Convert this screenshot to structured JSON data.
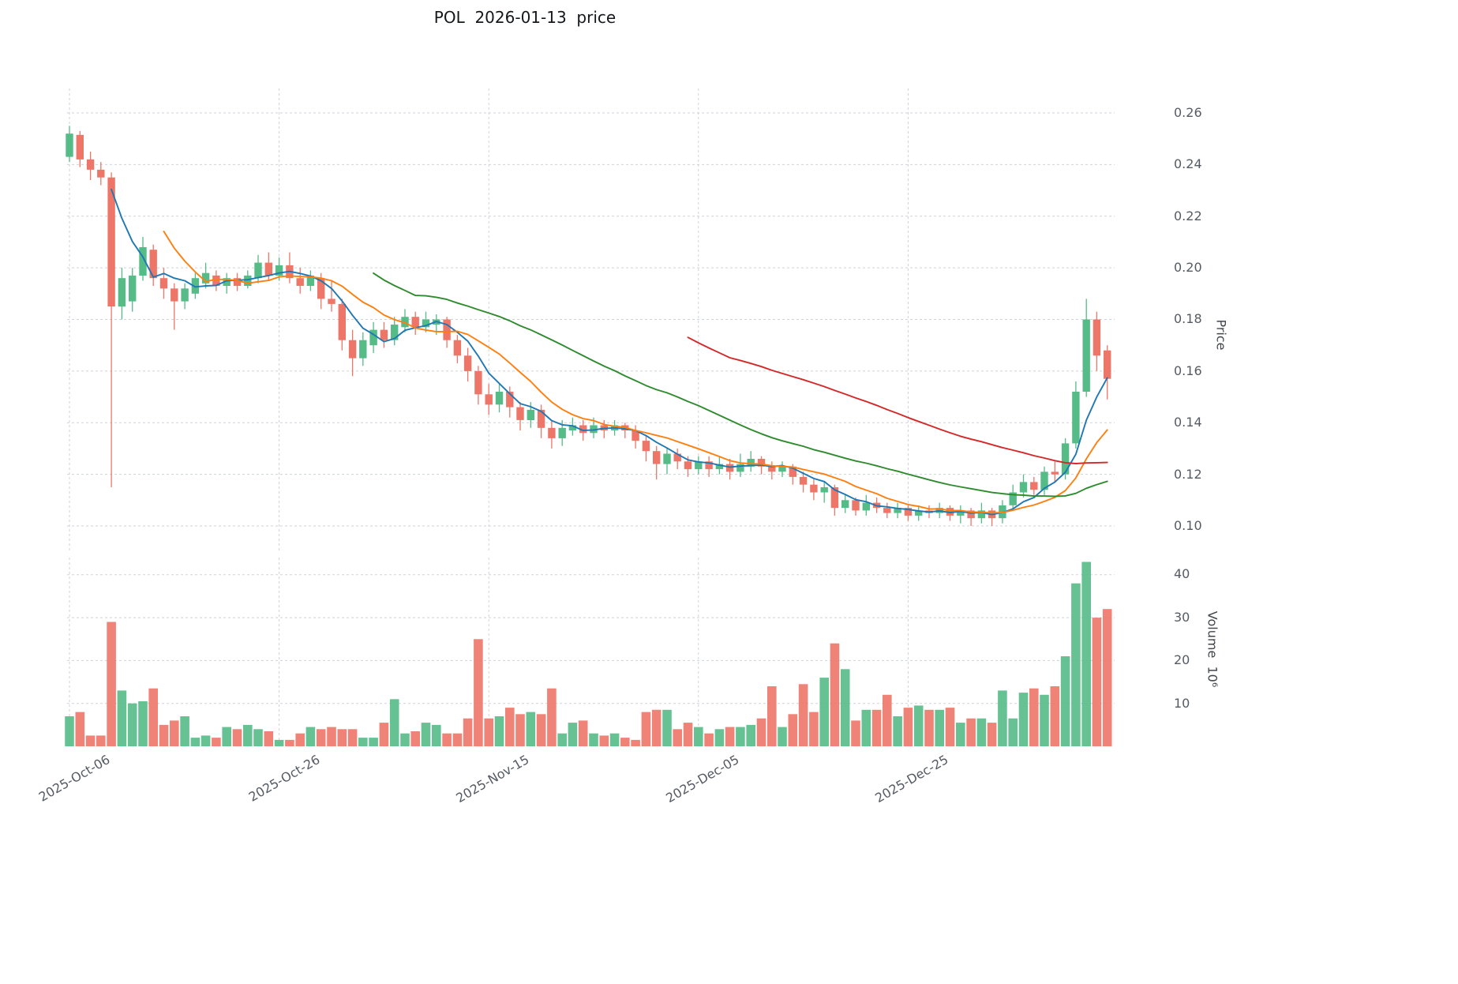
{
  "chart_data": {
    "type": "candlestick",
    "title": "POL  2026-01-13  price",
    "ylabel": "Price",
    "volume_label": "Volume  10⁶",
    "price_ticks": [
      "0.26",
      "0.24",
      "0.22",
      "0.20",
      "0.18",
      "0.16",
      "0.14",
      "0.12",
      "0.10"
    ],
    "volume_ticks": [
      "40",
      "30",
      "20",
      "10"
    ],
    "x_ticks": [
      {
        "label": "2025-Oct-06",
        "index": 0
      },
      {
        "label": "2025-Oct-26",
        "index": 20
      },
      {
        "label": "2025-Nov-15",
        "index": 40
      },
      {
        "label": "2025-Dec-05",
        "index": 60
      },
      {
        "label": "2025-Dec-25",
        "index": 80
      }
    ],
    "price_range": [
      0.1,
      0.26
    ],
    "volume_range": [
      0,
      45
    ],
    "grid": true,
    "colors": {
      "up": "#55bb87",
      "down": "#ee7668",
      "grid": "#cdd2d8",
      "tick_text": "#555b63",
      "title_text": "#15181b"
    },
    "moving_averages": [
      {
        "window": 5,
        "color": "#1f77b4"
      },
      {
        "window": 10,
        "color": "#ff7f0e"
      },
      {
        "window": 30,
        "color": "#2e8b2e"
      },
      {
        "window": 60,
        "color": "#d62728"
      }
    ],
    "dates": [
      "2025-10-06",
      "2025-10-07",
      "2025-10-08",
      "2025-10-09",
      "2025-10-10",
      "2025-10-11",
      "2025-10-12",
      "2025-10-13",
      "2025-10-14",
      "2025-10-15",
      "2025-10-16",
      "2025-10-17",
      "2025-10-18",
      "2025-10-19",
      "2025-10-20",
      "2025-10-21",
      "2025-10-22",
      "2025-10-23",
      "2025-10-24",
      "2025-10-25",
      "2025-10-26",
      "2025-10-27",
      "2025-10-28",
      "2025-10-29",
      "2025-10-30",
      "2025-10-31",
      "2025-11-01",
      "2025-11-02",
      "2025-11-03",
      "2025-11-04",
      "2025-11-05",
      "2025-11-06",
      "2025-11-07",
      "2025-11-08",
      "2025-11-09",
      "2025-11-10",
      "2025-11-11",
      "2025-11-12",
      "2025-11-13",
      "2025-11-14",
      "2025-11-15",
      "2025-11-16",
      "2025-11-17",
      "2025-11-18",
      "2025-11-19",
      "2025-11-20",
      "2025-11-21",
      "2025-11-22",
      "2025-11-23",
      "2025-11-24",
      "2025-11-25",
      "2025-11-26",
      "2025-11-27",
      "2025-11-28",
      "2025-11-29",
      "2025-11-30",
      "2025-12-01",
      "2025-12-02",
      "2025-12-03",
      "2025-12-04",
      "2025-12-05",
      "2025-12-06",
      "2025-12-07",
      "2025-12-08",
      "2025-12-09",
      "2025-12-10",
      "2025-12-11",
      "2025-12-12",
      "2025-12-13",
      "2025-12-14",
      "2025-12-15",
      "2025-12-16",
      "2025-12-17",
      "2025-12-18",
      "2025-12-19",
      "2025-12-20",
      "2025-12-21",
      "2025-12-22",
      "2025-12-23",
      "2025-12-24",
      "2025-12-25",
      "2025-12-26",
      "2025-12-27",
      "2025-12-28",
      "2025-12-29",
      "2025-12-30",
      "2025-12-31",
      "2026-01-01",
      "2026-01-02",
      "2026-01-03",
      "2026-01-04",
      "2026-01-05",
      "2026-01-06",
      "2026-01-07",
      "2026-01-08",
      "2026-01-09",
      "2026-01-10",
      "2026-01-11",
      "2026-01-12",
      "2026-01-13"
    ],
    "open": [
      0.243,
      0.2515,
      0.242,
      0.238,
      0.235,
      0.185,
      0.187,
      0.197,
      0.207,
      0.196,
      0.192,
      0.187,
      0.19,
      0.194,
      0.197,
      0.193,
      0.196,
      0.193,
      0.196,
      0.202,
      0.197,
      0.201,
      0.196,
      0.193,
      0.196,
      0.188,
      0.186,
      0.172,
      0.165,
      0.17,
      0.176,
      0.172,
      0.177,
      0.181,
      0.177,
      0.178,
      0.18,
      0.172,
      0.166,
      0.16,
      0.151,
      0.147,
      0.152,
      0.146,
      0.141,
      0.145,
      0.138,
      0.134,
      0.137,
      0.139,
      0.136,
      0.139,
      0.137,
      0.139,
      0.137,
      0.133,
      0.129,
      0.124,
      0.128,
      0.125,
      0.122,
      0.125,
      0.122,
      0.124,
      0.121,
      0.123,
      0.126,
      0.123,
      0.121,
      0.123,
      0.119,
      0.116,
      0.113,
      0.115,
      0.107,
      0.11,
      0.106,
      0.109,
      0.107,
      0.105,
      0.107,
      0.104,
      0.106,
      0.105,
      0.107,
      0.104,
      0.106,
      0.103,
      0.106,
      0.103,
      0.108,
      0.113,
      0.117,
      0.114,
      0.121,
      0.12,
      0.132,
      0.152,
      0.18,
      0.168
    ],
    "high": [
      0.255,
      0.253,
      0.245,
      0.241,
      0.237,
      0.2,
      0.2,
      0.212,
      0.209,
      0.2,
      0.194,
      0.194,
      0.198,
      0.202,
      0.199,
      0.198,
      0.198,
      0.199,
      0.205,
      0.206,
      0.204,
      0.206,
      0.2,
      0.199,
      0.198,
      0.195,
      0.188,
      0.176,
      0.175,
      0.179,
      0.179,
      0.181,
      0.184,
      0.183,
      0.183,
      0.182,
      0.181,
      0.174,
      0.169,
      0.162,
      0.155,
      0.155,
      0.154,
      0.148,
      0.148,
      0.147,
      0.141,
      0.141,
      0.142,
      0.141,
      0.142,
      0.141,
      0.141,
      0.14,
      0.139,
      0.135,
      0.131,
      0.13,
      0.13,
      0.127,
      0.127,
      0.127,
      0.127,
      0.126,
      0.128,
      0.129,
      0.127,
      0.125,
      0.125,
      0.124,
      0.121,
      0.118,
      0.117,
      0.116,
      0.112,
      0.111,
      0.112,
      0.111,
      0.109,
      0.109,
      0.108,
      0.108,
      0.108,
      0.109,
      0.108,
      0.108,
      0.107,
      0.109,
      0.107,
      0.11,
      0.116,
      0.12,
      0.119,
      0.123,
      0.125,
      0.134,
      0.156,
      0.188,
      0.183,
      0.17
    ],
    "low": [
      0.241,
      0.239,
      0.234,
      0.232,
      0.115,
      0.18,
      0.183,
      0.195,
      0.193,
      0.188,
      0.176,
      0.184,
      0.188,
      0.192,
      0.191,
      0.19,
      0.191,
      0.192,
      0.194,
      0.195,
      0.195,
      0.194,
      0.19,
      0.191,
      0.184,
      0.183,
      0.168,
      0.158,
      0.162,
      0.167,
      0.169,
      0.17,
      0.175,
      0.174,
      0.175,
      0.174,
      0.169,
      0.163,
      0.156,
      0.147,
      0.143,
      0.144,
      0.142,
      0.137,
      0.138,
      0.134,
      0.13,
      0.131,
      0.135,
      0.133,
      0.134,
      0.134,
      0.135,
      0.134,
      0.13,
      0.125,
      0.118,
      0.12,
      0.122,
      0.119,
      0.12,
      0.119,
      0.12,
      0.118,
      0.119,
      0.121,
      0.12,
      0.118,
      0.119,
      0.116,
      0.113,
      0.11,
      0.109,
      0.104,
      0.105,
      0.104,
      0.104,
      0.105,
      0.103,
      0.103,
      0.102,
      0.102,
      0.103,
      0.103,
      0.102,
      0.101,
      0.1,
      0.101,
      0.1,
      0.101,
      0.106,
      0.111,
      0.112,
      0.112,
      0.117,
      0.118,
      0.13,
      0.15,
      0.16,
      0.149
    ],
    "close": [
      0.252,
      0.242,
      0.238,
      0.235,
      0.185,
      0.196,
      0.197,
      0.208,
      0.196,
      0.192,
      0.187,
      0.192,
      0.196,
      0.198,
      0.193,
      0.196,
      0.193,
      0.197,
      0.202,
      0.197,
      0.201,
      0.196,
      0.193,
      0.197,
      0.188,
      0.186,
      0.172,
      0.165,
      0.172,
      0.176,
      0.172,
      0.178,
      0.181,
      0.177,
      0.18,
      0.18,
      0.172,
      0.166,
      0.16,
      0.151,
      0.147,
      0.152,
      0.146,
      0.141,
      0.145,
      0.138,
      0.134,
      0.138,
      0.139,
      0.136,
      0.139,
      0.137,
      0.139,
      0.137,
      0.133,
      0.129,
      0.124,
      0.128,
      0.125,
      0.122,
      0.125,
      0.122,
      0.124,
      0.121,
      0.124,
      0.126,
      0.123,
      0.121,
      0.123,
      0.119,
      0.116,
      0.113,
      0.115,
      0.107,
      0.11,
      0.106,
      0.109,
      0.107,
      0.105,
      0.107,
      0.104,
      0.106,
      0.105,
      0.107,
      0.104,
      0.106,
      0.103,
      0.106,
      0.103,
      0.108,
      0.113,
      0.117,
      0.114,
      0.121,
      0.12,
      0.132,
      0.152,
      0.18,
      0.166,
      0.157
    ],
    "volume_millions": [
      7,
      8,
      2.5,
      2.5,
      29,
      13,
      10,
      10.5,
      13.5,
      5,
      6,
      7,
      2,
      2.5,
      2,
      4.5,
      4,
      5,
      4,
      3.5,
      1.5,
      1.5,
      3,
      4.5,
      4,
      4.5,
      4,
      4,
      2,
      2,
      5.5,
      11,
      3,
      3.5,
      5.5,
      5,
      3,
      3,
      6.5,
      25,
      6.5,
      7,
      9,
      7.5,
      8,
      7.5,
      13.5,
      3,
      5.5,
      6,
      3,
      2.5,
      3,
      2,
      1.5,
      8,
      8.5,
      8.5,
      4,
      5.5,
      4.5,
      3,
      4,
      4.5,
      4.5,
      5,
      6.5,
      14,
      4.5,
      7.5,
      14.5,
      8,
      16,
      24,
      18,
      6,
      8.5,
      8.5,
      12,
      7,
      9,
      9.5,
      8.5,
      8.5,
      9,
      5.5,
      6.5,
      6.5,
      5.5,
      13,
      6.5,
      12.5,
      13.5,
      12,
      14,
      21,
      38,
      43,
      30,
      32
    ]
  }
}
